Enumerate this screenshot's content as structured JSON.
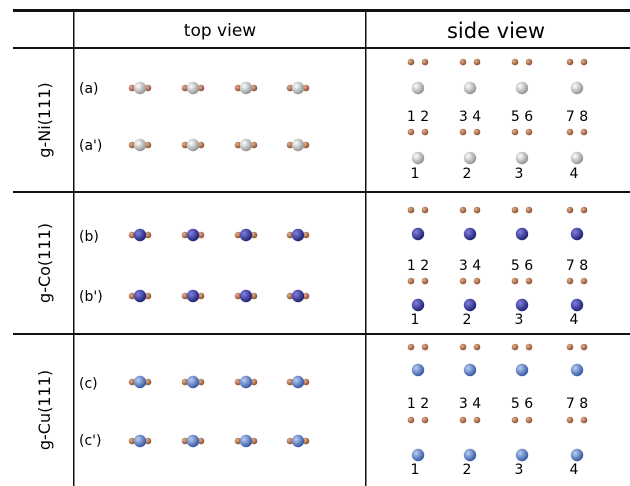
{
  "headers": {
    "top_view": "top view",
    "side_view": "side view"
  },
  "rows": [
    {
      "label": "g-Ni(111)",
      "metal": "Ni",
      "metal_color": "#b4b4b4",
      "sublabels": [
        "(a)",
        "(a')"
      ],
      "pair_labels": [
        "1 2",
        "3 4",
        "5 6",
        "7 8"
      ],
      "site_labels": [
        "1",
        "2",
        "3",
        "4"
      ]
    },
    {
      "label": "g-Co(111)",
      "metal": "Co",
      "metal_color": "#2e2f9e",
      "sublabels": [
        "(b)",
        "(b')"
      ],
      "pair_labels": [
        "1 2",
        "3 4",
        "5 6",
        "7 8"
      ],
      "site_labels": [
        "1",
        "2",
        "3",
        "4"
      ]
    },
    {
      "label": "g-Cu(111)",
      "metal": "Cu",
      "metal_color": "#4a73c4",
      "sublabels": [
        "(c)",
        "(c')"
      ],
      "pair_labels": [
        "1 2",
        "3 4",
        "5 6",
        "7 8"
      ],
      "site_labels": [
        "1",
        "2",
        "3",
        "4"
      ]
    }
  ],
  "colors": {
    "carbon": "#9a5a3a",
    "rule": "#111111"
  }
}
